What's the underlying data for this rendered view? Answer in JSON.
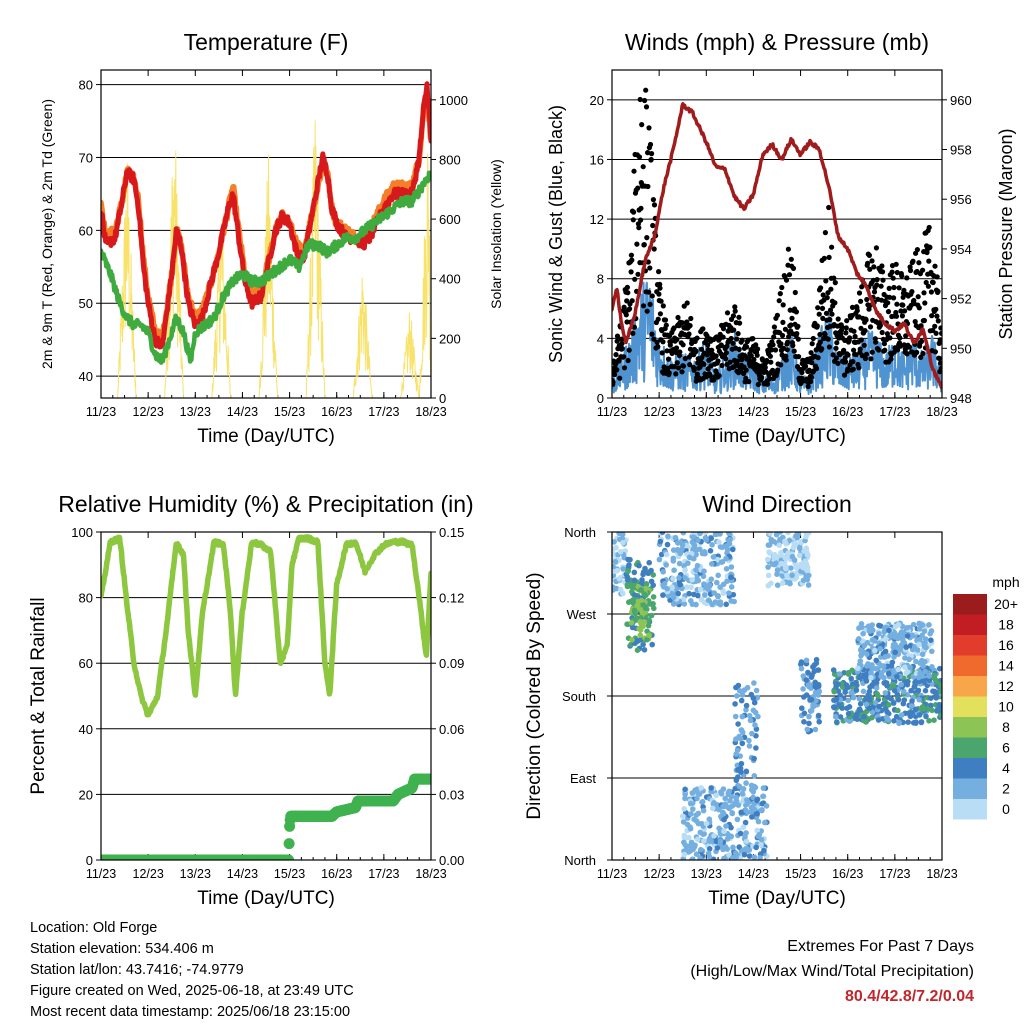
{
  "x_ticks": [
    "11/23",
    "12/23",
    "13/23",
    "14/23",
    "15/23",
    "16/23",
    "17/23",
    "18/23"
  ],
  "x_label": "Time (Day/UTC)",
  "chart_data": [
    {
      "type": "line",
      "title": "Temperature (F)",
      "ylabel_left": "2m & 9m T (Red, Orange) & 2m Td (Green)",
      "ylabel_right": "Solar Insolation (Yellow)",
      "xlabel": "Time (Day/UTC)",
      "x_days": [
        11,
        12,
        13,
        14,
        15,
        16,
        17,
        18
      ],
      "ylim_left": [
        37,
        82
      ],
      "ylim_right": [
        0,
        1100
      ],
      "yticks_left": [
        40,
        50,
        60,
        70,
        80
      ],
      "yticks_right": [
        0,
        200,
        400,
        600,
        800,
        1000
      ],
      "grid": true,
      "series": [
        {
          "name": "2m T",
          "color": "#d7191c",
          "axis": "left",
          "x": [
            11.0,
            11.1,
            11.3,
            11.45,
            11.55,
            11.7,
            11.8,
            11.9,
            12.0,
            12.15,
            12.3,
            12.5,
            12.6,
            12.7,
            12.85,
            13.0,
            13.15,
            13.3,
            13.5,
            13.7,
            13.8,
            13.9,
            14.05,
            14.2,
            14.4,
            14.6,
            14.7,
            14.85,
            15.0,
            15.15,
            15.3,
            15.5,
            15.7,
            15.8,
            15.9,
            16.0,
            16.2,
            16.4,
            16.55,
            16.7,
            16.85,
            17.0,
            17.2,
            17.4,
            17.6,
            17.75,
            17.85,
            17.92,
            18.0
          ],
          "y": [
            63,
            58,
            59,
            64,
            68,
            67,
            63,
            55,
            50,
            45,
            44,
            54,
            60,
            58,
            50,
            47,
            48,
            52,
            57,
            63,
            65,
            60,
            53,
            50,
            51,
            57,
            60,
            62,
            61,
            57,
            56,
            63,
            70,
            68,
            63,
            61,
            59,
            59,
            58,
            59,
            61,
            63,
            65,
            65,
            65,
            70,
            77,
            80,
            72
          ]
        },
        {
          "name": "9m T",
          "color": "#f47f28",
          "axis": "left",
          "x": [
            11.0,
            11.1,
            11.3,
            11.45,
            11.55,
            11.7,
            11.8,
            11.9,
            12.0,
            12.15,
            12.3,
            12.5,
            12.6,
            12.7,
            12.85,
            13.0,
            13.15,
            13.3,
            13.5,
            13.7,
            13.8,
            13.9,
            14.05,
            14.2,
            14.4,
            14.6,
            14.7,
            14.85,
            15.0,
            15.15,
            15.3,
            15.5,
            15.7,
            15.8,
            15.9,
            16.0,
            16.2,
            16.4,
            16.55,
            16.7,
            16.85,
            17.0,
            17.2,
            17.4,
            17.6,
            17.75,
            17.85,
            17.92,
            18.0
          ],
          "y": [
            64,
            59,
            60,
            64,
            68,
            67,
            64,
            56,
            51,
            46,
            45,
            54,
            60,
            58,
            51,
            48,
            49,
            52,
            57,
            63,
            66,
            61,
            54,
            51,
            52,
            57,
            60,
            62,
            61,
            58,
            57,
            63,
            69,
            68,
            63,
            61,
            60,
            59,
            59,
            60,
            62,
            64,
            66,
            66,
            66,
            70,
            77,
            79,
            72
          ]
        },
        {
          "name": "2m Td",
          "color": "#3fab3f",
          "axis": "left",
          "x": [
            11.0,
            11.2,
            11.4,
            11.55,
            11.7,
            11.85,
            12.0,
            12.15,
            12.3,
            12.45,
            12.6,
            12.75,
            12.9,
            13.0,
            13.2,
            13.4,
            13.6,
            13.8,
            14.0,
            14.2,
            14.4,
            14.6,
            14.8,
            15.0,
            15.2,
            15.4,
            15.6,
            15.8,
            16.0,
            16.2,
            16.4,
            16.6,
            16.8,
            17.0,
            17.2,
            17.4,
            17.6,
            17.8,
            18.0
          ],
          "y": [
            57,
            54,
            50,
            48,
            47,
            47,
            46,
            43,
            42,
            45,
            48,
            46,
            42,
            46,
            47,
            48,
            51,
            53,
            54,
            53,
            53,
            54,
            55,
            56,
            55,
            58,
            58,
            57,
            58,
            59,
            59,
            60,
            61,
            62,
            63,
            64,
            64,
            66,
            68
          ]
        },
        {
          "name": "Solar",
          "color": "#f8e269",
          "axis": "right",
          "x": [
            11.0,
            11.35,
            11.55,
            11.75,
            11.95,
            12.35,
            12.55,
            12.75,
            12.95,
            13.35,
            13.55,
            13.75,
            13.95,
            14.35,
            14.55,
            14.75,
            14.95,
            15.35,
            15.55,
            15.75,
            15.95,
            16.35,
            16.55,
            16.75,
            16.95,
            17.35,
            17.55,
            17.75,
            17.95,
            18.0
          ],
          "y": [
            0,
            0,
            880,
            0,
            0,
            0,
            1050,
            0,
            0,
            0,
            700,
            0,
            0,
            0,
            850,
            0,
            0,
            0,
            1050,
            0,
            0,
            0,
            500,
            0,
            0,
            0,
            320,
            0,
            1050,
            0
          ]
        }
      ]
    },
    {
      "type": "line",
      "title": "Winds (mph) & Pressure (mb)",
      "ylabel_left": "Sonic Wind & Gust (Blue, Black)",
      "ylabel_right": "Station Pressure (Maroon)",
      "xlabel": "Time (Day/UTC)",
      "x_days": [
        11,
        12,
        13,
        14,
        15,
        16,
        17,
        18
      ],
      "ylim_left": [
        0,
        22
      ],
      "ylim_right": [
        948,
        961.2
      ],
      "yticks_left": [
        0,
        4,
        8,
        12,
        16,
        20
      ],
      "yticks_right": [
        948,
        950,
        952,
        954,
        956,
        958,
        960
      ],
      "grid": true,
      "series": [
        {
          "name": "Sonic Wind",
          "color": "#4f93d0",
          "axis": "left",
          "x": [
            11.0,
            11.2,
            11.4,
            11.6,
            11.8,
            12.0,
            12.2,
            12.4,
            12.6,
            12.8,
            13.0,
            13.2,
            13.4,
            13.6,
            13.8,
            14.0,
            14.2,
            14.4,
            14.6,
            14.8,
            15.0,
            15.2,
            15.4,
            15.6,
            15.8,
            16.0,
            16.2,
            16.4,
            16.6,
            16.8,
            17.0,
            17.2,
            17.4,
            17.6,
            17.8,
            18.0
          ],
          "y": [
            1,
            2,
            3,
            5,
            6,
            3,
            2,
            2,
            2,
            2,
            3,
            1,
            2,
            3,
            2,
            2,
            1,
            1,
            2,
            3,
            1,
            1,
            3,
            4,
            2,
            2,
            2,
            3,
            3,
            2,
            3,
            2,
            3,
            2,
            3,
            1
          ]
        },
        {
          "name": "Gust",
          "color": "#000000",
          "axis": "left",
          "x": [
            11.0,
            11.2,
            11.4,
            11.6,
            11.8,
            12.0,
            12.2,
            12.4,
            12.6,
            12.8,
            13.0,
            13.2,
            13.4,
            13.6,
            13.8,
            14.0,
            14.2,
            14.4,
            14.6,
            14.8,
            15.0,
            15.2,
            15.4,
            15.6,
            15.8,
            16.0,
            16.2,
            16.4,
            16.6,
            16.8,
            17.0,
            17.2,
            17.4,
            17.6,
            17.8,
            18.0
          ],
          "y": [
            2,
            4,
            8,
            18,
            14,
            6,
            3,
            4,
            5,
            3,
            4,
            3,
            4,
            5,
            3,
            3,
            2,
            3,
            6,
            8,
            2,
            2,
            6,
            10,
            4,
            4,
            5,
            7,
            8,
            6,
            7,
            6,
            7,
            8,
            9,
            3
          ]
        },
        {
          "name": "Pressure",
          "color": "#a01c1c",
          "axis": "right",
          "x": [
            11.0,
            11.1,
            11.2,
            11.3,
            11.5,
            11.7,
            11.9,
            12.1,
            12.3,
            12.5,
            12.7,
            12.9,
            13.0,
            13.2,
            13.4,
            13.6,
            13.8,
            14.0,
            14.2,
            14.4,
            14.6,
            14.8,
            15.0,
            15.2,
            15.4,
            15.6,
            15.8,
            16.0,
            16.2,
            16.4,
            16.6,
            16.8,
            17.0,
            17.2,
            17.4,
            17.6,
            17.8,
            18.0
          ],
          "y": [
            951.5,
            952.5,
            951,
            950.2,
            951.5,
            953.5,
            954.5,
            956.5,
            958,
            959.8,
            959.5,
            958.7,
            958.3,
            957.3,
            957.2,
            956.1,
            955.6,
            956.2,
            957.8,
            958.2,
            957.6,
            958.4,
            957.8,
            958.3,
            958,
            956.5,
            954.5,
            954,
            953,
            952.5,
            951.5,
            951,
            950.7,
            951,
            950.2,
            950.8,
            949.2,
            948.4
          ]
        }
      ]
    },
    {
      "type": "line",
      "title": "Relative Humidity (%) & Precipitation (in)",
      "ylabel_left": "Percent & Total Rainfall",
      "xlabel": "Time (Day/UTC)",
      "x_days": [
        11,
        12,
        13,
        14,
        15,
        16,
        17,
        18
      ],
      "ylim_left": [
        0,
        100
      ],
      "ylim_right": [
        0,
        0.15
      ],
      "yticks_left": [
        0,
        20,
        40,
        60,
        80,
        100
      ],
      "yticks_right": [
        "0.00",
        "0.03",
        "0.06",
        "0.09",
        "0.12",
        "0.15"
      ],
      "grid": true,
      "series": [
        {
          "name": "RH",
          "color": "#8dc63f",
          "axis": "left",
          "x": [
            11.0,
            11.2,
            11.4,
            11.55,
            11.7,
            11.85,
            12.0,
            12.2,
            12.4,
            12.6,
            12.75,
            12.85,
            13.0,
            13.15,
            13.4,
            13.6,
            13.75,
            13.85,
            14.0,
            14.2,
            14.4,
            14.6,
            14.8,
            14.95,
            15.05,
            15.2,
            15.4,
            15.6,
            15.75,
            15.85,
            16.0,
            16.2,
            16.4,
            16.6,
            16.8,
            17.0,
            17.2,
            17.4,
            17.6,
            17.75,
            17.9,
            18.0
          ],
          "y": [
            80,
            97,
            98,
            78,
            60,
            50,
            44,
            50,
            72,
            97,
            93,
            70,
            50,
            75,
            97,
            96,
            75,
            50,
            76,
            97,
            96,
            94,
            60,
            65,
            90,
            98,
            98,
            97,
            60,
            50,
            84,
            96,
            97,
            88,
            93,
            96,
            97,
            97,
            96,
            80,
            62,
            87
          ]
        },
        {
          "name": "Total Rainfall",
          "color": "#3fb24f",
          "axis": "right",
          "x": [
            11.0,
            14.98,
            15.0,
            15.02,
            15.9,
            16.0,
            16.4,
            16.45,
            17.2,
            17.3,
            17.6,
            17.65,
            18.0
          ],
          "y": [
            0,
            0,
            0.015,
            0.02,
            0.02,
            0.022,
            0.024,
            0.027,
            0.027,
            0.03,
            0.033,
            0.037,
            0.037
          ]
        }
      ]
    },
    {
      "type": "scatter",
      "title": "Wind Direction",
      "ylabel_left": "Direction (Colored By Speed)",
      "xlabel": "Time (Day/UTC)",
      "x_days": [
        11,
        12,
        13,
        14,
        15,
        16,
        17,
        18
      ],
      "yticks_labels": [
        "North",
        "East",
        "South",
        "West",
        "North"
      ],
      "ylim_left": [
        0,
        360
      ],
      "grid": true,
      "legend": {
        "title": "mph",
        "labels": [
          "20+",
          "18",
          "16",
          "14",
          "12",
          "10",
          "8",
          "6",
          "4",
          "2",
          "0"
        ],
        "colors": [
          "#9b1c1c",
          "#c21d22",
          "#e23c2c",
          "#f06a2d",
          "#f9a64a",
          "#e3e05e",
          "#8cc456",
          "#4aa66d",
          "#3f7fc1",
          "#74afe0",
          "#b8ddf5"
        ]
      },
      "clusters": [
        {
          "x0": 11.0,
          "x1": 11.3,
          "dir_lo": 290,
          "dir_hi": 360,
          "speed": 1
        },
        {
          "x0": 11.3,
          "x1": 11.9,
          "dir_lo": 230,
          "dir_hi": 330,
          "speed": 5
        },
        {
          "x0": 11.4,
          "x1": 11.8,
          "dir_lo": 240,
          "dir_hi": 300,
          "speed": 7
        },
        {
          "x0": 12.0,
          "x1": 13.6,
          "dir_lo": 280,
          "dir_hi": 360,
          "speed": 2
        },
        {
          "x0": 12.5,
          "x1": 14.3,
          "dir_lo": 0,
          "dir_hi": 80,
          "speed": 2
        },
        {
          "x0": 13.6,
          "x1": 14.1,
          "dir_lo": 60,
          "dir_hi": 200,
          "speed": 3
        },
        {
          "x0": 14.3,
          "x1": 15.2,
          "dir_lo": 300,
          "dir_hi": 360,
          "speed": 1
        },
        {
          "x0": 15.0,
          "x1": 15.4,
          "dir_lo": 140,
          "dir_hi": 220,
          "speed": 3
        },
        {
          "x0": 15.7,
          "x1": 18.0,
          "dir_lo": 150,
          "dir_hi": 210,
          "speed": 4
        },
        {
          "x0": 16.2,
          "x1": 17.8,
          "dir_lo": 200,
          "dir_hi": 260,
          "speed": 2
        }
      ]
    }
  ],
  "info": {
    "location": "Location: Old Forge",
    "elevation": "Station elevation: 534.406 m",
    "latlon": "Station lat/lon: 43.7416; -74.9779",
    "created": "Figure created on Wed, 2025-06-18, at 23:49 UTC",
    "recent": "Most recent data timestamp: 2025/06/18 23:15:00"
  },
  "extremes": {
    "line1": "Extremes For Past 7 Days",
    "line2": "(High/Low/Max Wind/Total Precipitation)",
    "values": "80.4/42.8/7.2/0.04"
  }
}
